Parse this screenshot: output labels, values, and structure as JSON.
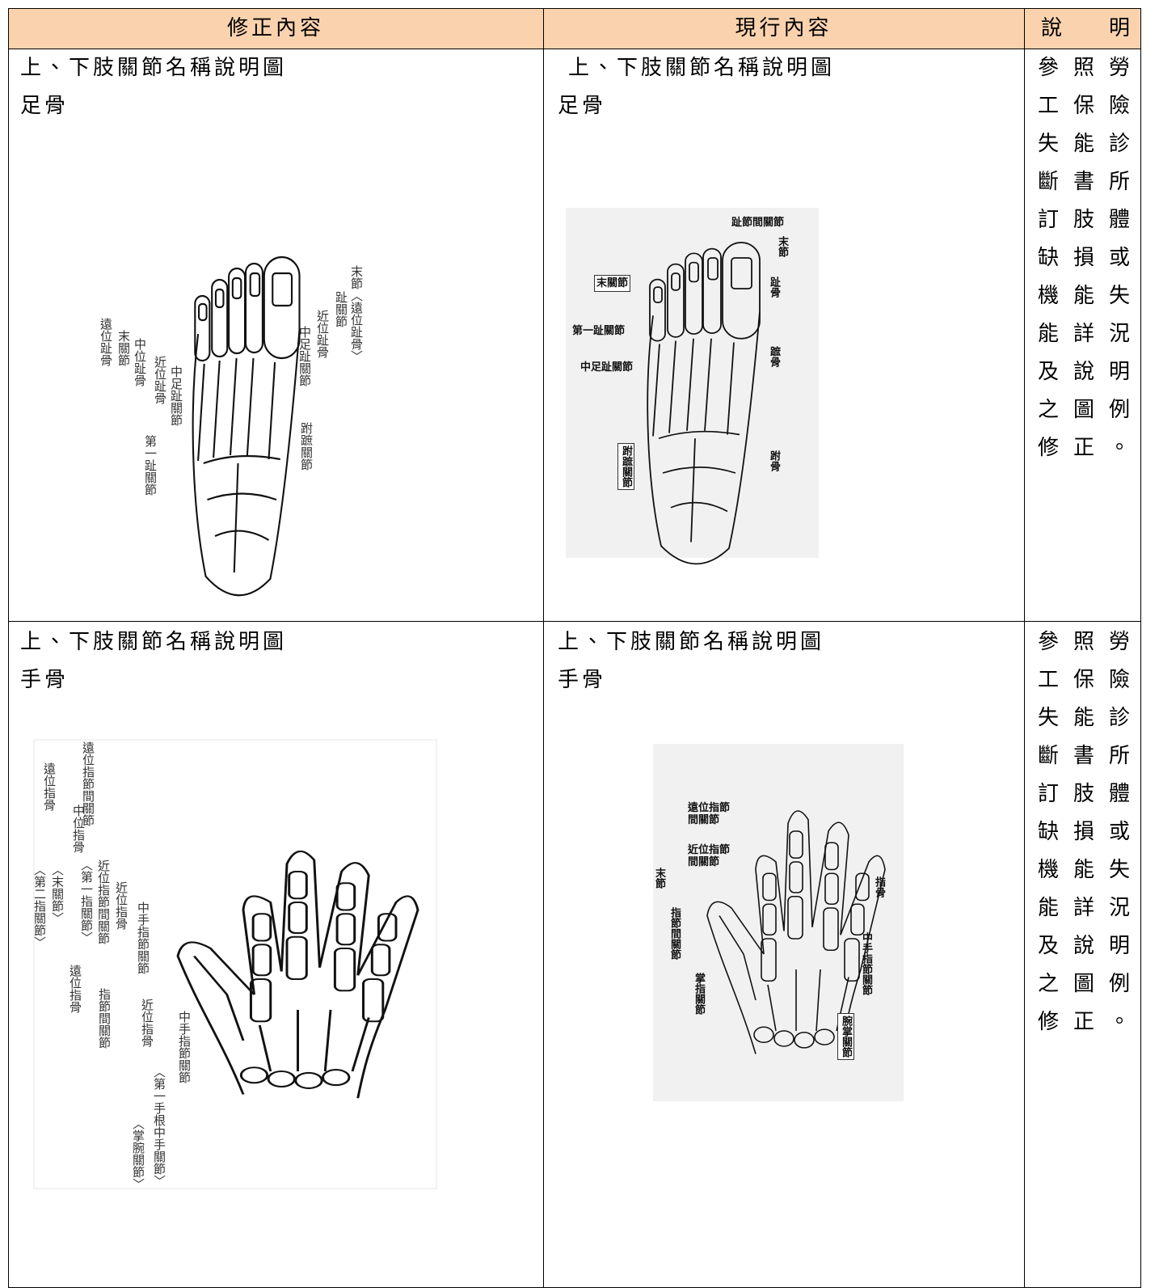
{
  "table": {
    "headers": [
      "修正內容",
      "現行內容",
      "說明"
    ],
    "rows": [
      [
        {
          "title": "上、下肢關節名稱說明圖",
          "subtitle": "足骨",
          "figure_labels": [
            "末節〈遠位趾骨〉",
            "趾關節",
            "近位趾骨",
            "中足趾關節",
            "跗蹠關節",
            "遠位趾骨",
            "末關節",
            "中位趾骨",
            "近位趾骨",
            "中足趾關節",
            "第一趾關節"
          ]
        },
        {
          "title": "上、下肢關節名稱說明圖",
          "subtitle": "足骨",
          "figure_labels": [
            "趾節間關節",
            "末節",
            "末關節",
            "趾骨",
            "第一趾關節",
            "中足趾關節",
            "蹠骨",
            "跗蹠關節",
            "跗骨"
          ]
        },
        "參照勞工保險失能診斷書所訂肢體缺損或機能失能詳況及說明之圖例修正。"
      ],
      [
        {
          "title": "上、下肢關節名稱說明圖",
          "subtitle": "手骨",
          "figure_labels": [
            "遠位指骨",
            "遠位指節間關節",
            "〈第二指關節〉",
            "〈末關節〉",
            "中位指骨",
            "〈第一指關節〉",
            "近位指節間關節",
            "近位指骨",
            "中手指節關節",
            "遠位指骨",
            "指節間關節",
            "近位指骨",
            "中手指節關節",
            "〈第一手根中手關節〉",
            "〈掌腕關節〉"
          ]
        },
        {
          "title": "上、下肢關節名稱說明圖",
          "subtitle": "手骨",
          "figure_labels": [
            "遠位指節間關節",
            "近位指節間關節",
            "末節",
            "指骨",
            "指節間關節",
            "掌指關節",
            "中手指節關節",
            "腕掌關節"
          ]
        },
        "參照勞工保險失能診斷書所訂肢體缺損或機能失能詳況及說明之圖例修正。"
      ]
    ]
  }
}
